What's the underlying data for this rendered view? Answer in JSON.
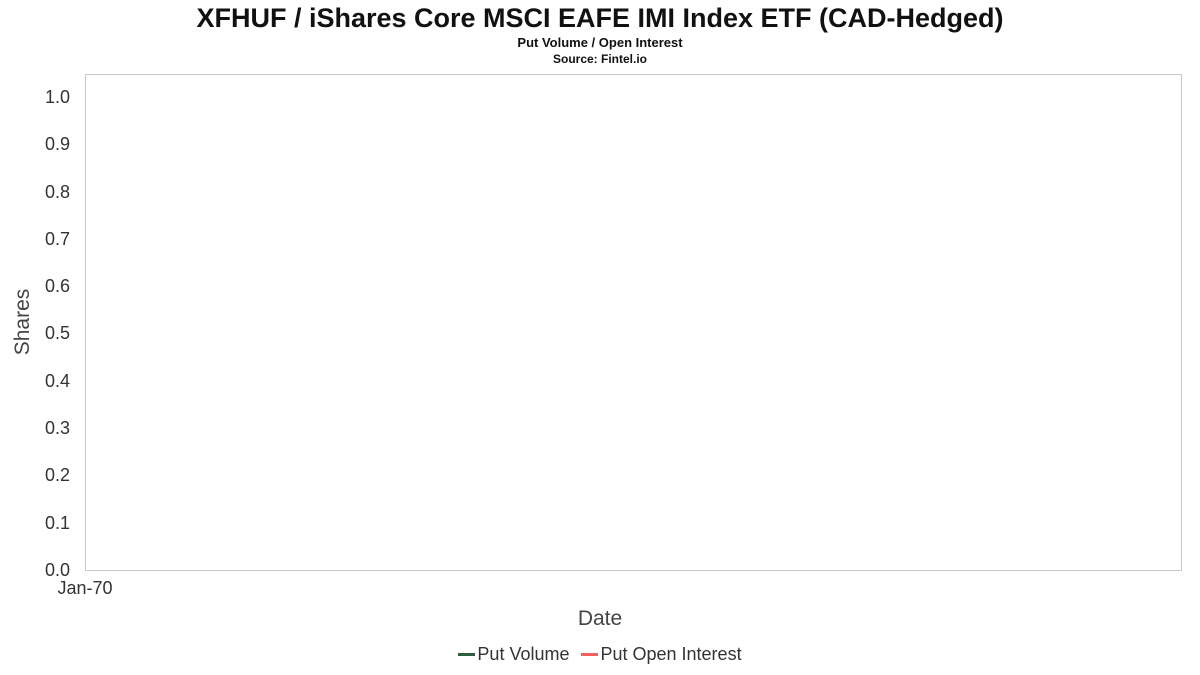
{
  "chart_data": {
    "type": "line",
    "title": "XFHUF / iShares Core MSCI EAFE IMI Index ETF (CAD-Hedged)",
    "subtitle": "Put Volume / Open Interest",
    "source": "Source: Fintel.io",
    "xlabel": "Date",
    "ylabel": "Shares",
    "x_tick_labels": [
      "Jan-70"
    ],
    "y_tick_labels": [
      "1.0",
      "0.9",
      "0.8",
      "0.7",
      "0.6",
      "0.5",
      "0.4",
      "0.3",
      "0.2",
      "0.1",
      "0.0"
    ],
    "ylim": [
      0.0,
      1.0
    ],
    "grid": false,
    "legend_position": "bottom",
    "plot_border_color": "#c9c9c9",
    "series": [
      {
        "name": "Put Volume",
        "color": "#2e5e3e",
        "values": []
      },
      {
        "name": "Put Open Interest",
        "color": "#f0625f",
        "values": []
      }
    ]
  }
}
